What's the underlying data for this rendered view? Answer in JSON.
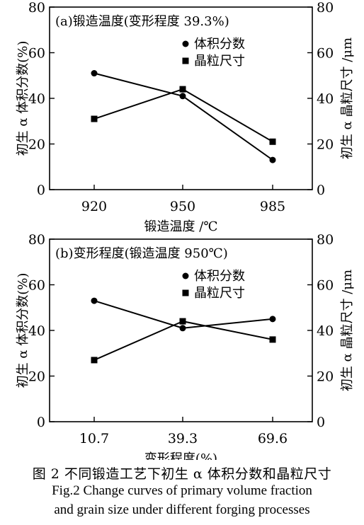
{
  "chart_data": [
    {
      "type": "line",
      "title": "(a)锻造温度(变形程度 39.3%)",
      "xlabel": "锻造温度 /℃",
      "ylabel": "初生 α 体积分数(%)",
      "y2label": "初生 α 晶粒尺寸 /μm",
      "categories": [
        "920",
        "950",
        "985"
      ],
      "ylim": [
        0,
        80
      ],
      "y2lim": [
        0,
        80
      ],
      "yticks": [
        "0",
        "20",
        "40",
        "60",
        "80"
      ],
      "y2ticks": [
        "0",
        "20",
        "40",
        "60",
        "80"
      ],
      "grid": false,
      "legend_position": "top-right",
      "series": [
        {
          "name": "体积分数",
          "marker": "circle",
          "axis": "left",
          "values": [
            51,
            41,
            13
          ]
        },
        {
          "name": "晶粒尺寸",
          "marker": "square",
          "axis": "right",
          "values": [
            31,
            44,
            21
          ]
        }
      ]
    },
    {
      "type": "line",
      "title": "(b)变形程度(锻造温度 950℃)",
      "xlabel": "变形程度(%)",
      "ylabel": "初生 α 体积分数(%)",
      "y2label": "初生 α 晶粒尺寸 /μm",
      "categories": [
        "10.7",
        "39.3",
        "69.6"
      ],
      "ylim": [
        0,
        80
      ],
      "y2lim": [
        0,
        80
      ],
      "yticks": [
        "0",
        "20",
        "40",
        "60",
        "80"
      ],
      "y2ticks": [
        "0",
        "20",
        "40",
        "60",
        "80"
      ],
      "grid": false,
      "legend_position": "top-right",
      "series": [
        {
          "name": "体积分数",
          "marker": "circle",
          "axis": "left",
          "values": [
            53,
            41,
            45
          ]
        },
        {
          "name": "晶粒尺寸",
          "marker": "square",
          "axis": "right",
          "values": [
            27,
            44,
            36
          ]
        }
      ]
    }
  ],
  "caption": {
    "zh": "图 2  不同锻造工艺下初生 α 体积分数和晶粒尺寸",
    "en_line1": "Fig.2  Change curves of primary volume fraction",
    "en_line2": "and grain size under different forging processes"
  }
}
